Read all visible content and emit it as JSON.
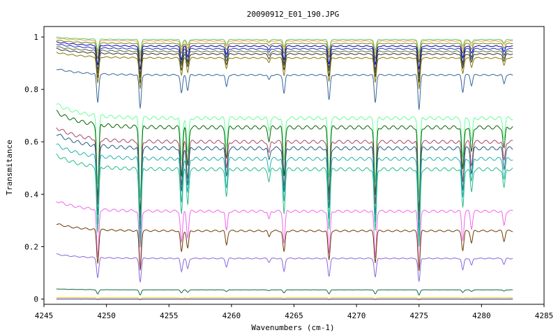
{
  "chart_data": {
    "type": "line",
    "title": "20090912_E01_190.JPG",
    "xlabel": "Wavenumbers (cm-1)",
    "ylabel": "Transmitance",
    "xlim": [
      4245,
      4285
    ],
    "ylim": [
      -0.02,
      1.04
    ],
    "x_ticks": [
      4245,
      4250,
      4255,
      4260,
      4265,
      4270,
      4275,
      4280,
      4285
    ],
    "y_ticks": [
      0,
      0.2,
      0.4,
      0.6,
      0.8,
      1
    ],
    "x_range": [
      4246,
      4282.5
    ],
    "grid": false,
    "legend": "none",
    "absorption_lines": [
      {
        "x": 4249.3,
        "rel_depth": 0.85
      },
      {
        "x": 4252.7,
        "rel_depth": 1.0
      },
      {
        "x": 4256.0,
        "rel_depth": 0.55
      },
      {
        "x": 4256.5,
        "rel_depth": 0.45
      },
      {
        "x": 4259.6,
        "rel_depth": 0.35
      },
      {
        "x": 4263.0,
        "rel_depth": 0.15
      },
      {
        "x": 4264.2,
        "rel_depth": 0.55
      },
      {
        "x": 4267.8,
        "rel_depth": 0.75
      },
      {
        "x": 4271.5,
        "rel_depth": 0.8
      },
      {
        "x": 4275.0,
        "rel_depth": 1.0
      },
      {
        "x": 4278.5,
        "rel_depth": 0.5
      },
      {
        "x": 4279.2,
        "rel_depth": 0.3
      },
      {
        "x": 4281.8,
        "rel_depth": 0.25
      }
    ],
    "series": [
      {
        "color": "#e8a060",
        "baseline": 0.985,
        "depth": 0.06
      },
      {
        "color": "#808000",
        "baseline": 0.975,
        "depth": 0.07
      },
      {
        "color": "#66cc66",
        "baseline": 0.99,
        "depth": 0.05
      },
      {
        "color": "#0000cc",
        "baseline": 0.965,
        "depth": 0.09
      },
      {
        "color": "#2233aa",
        "baseline": 0.955,
        "depth": 0.1
      },
      {
        "color": "#556b2f",
        "baseline": 0.945,
        "depth": 0.1
      },
      {
        "color": "#333333",
        "baseline": 0.935,
        "depth": 0.11
      },
      {
        "color": "#8b7500",
        "baseline": 0.92,
        "depth": 0.12
      },
      {
        "color": "#336699",
        "baseline": 0.855,
        "depth": 0.13
      },
      {
        "color": "#66ff99",
        "baseline": 0.69,
        "depth": 0.3
      },
      {
        "color": "#006600",
        "baseline": 0.655,
        "depth": 0.33
      },
      {
        "color": "#aa4466",
        "baseline": 0.6,
        "depth": 0.3
      },
      {
        "color": "#1f5f7f",
        "baseline": 0.575,
        "depth": 0.31
      },
      {
        "color": "#20b2aa",
        "baseline": 0.535,
        "depth": 0.3
      },
      {
        "color": "#22bb88",
        "baseline": 0.495,
        "depth": 0.3
      },
      {
        "color": "#ee66ee",
        "baseline": 0.335,
        "depth": 0.22
      },
      {
        "color": "#6b3a00",
        "baseline": 0.26,
        "depth": 0.15
      },
      {
        "color": "#8866dd",
        "baseline": 0.155,
        "depth": 0.09
      },
      {
        "color": "#116644",
        "baseline": 0.035,
        "depth": 0.02
      },
      {
        "color": "#ffcc00",
        "baseline": 0.005,
        "depth": 0.004
      },
      {
        "color": "#333399",
        "baseline": 0.0,
        "depth": 0.002
      }
    ]
  }
}
